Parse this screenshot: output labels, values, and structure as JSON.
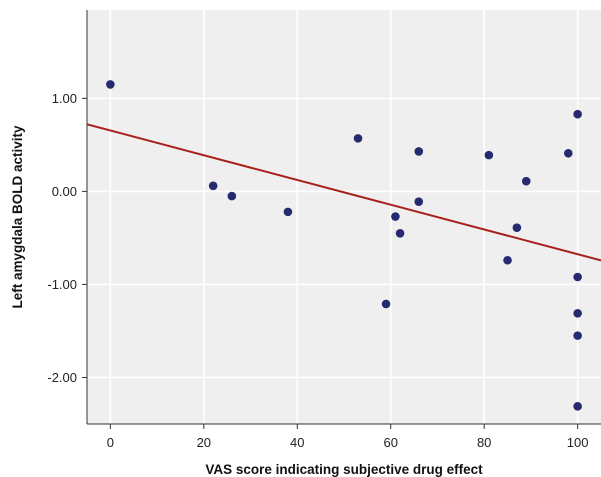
{
  "chart_data": {
    "type": "scatter",
    "xlabel": "VAS score indicating subjective drug effect",
    "ylabel": "Left amygdala BOLD activity",
    "xlim": [
      -5,
      105
    ],
    "ylim": [
      -2.5,
      1.95
    ],
    "x_ticks": [
      0,
      20,
      40,
      60,
      80,
      100
    ],
    "y_ticks": [
      1.0,
      0.0,
      -1.0,
      -2.0
    ],
    "x_tick_labels": [
      "0",
      "20",
      "40",
      "60",
      "80",
      "100"
    ],
    "y_tick_labels": [
      "1.00",
      "0.00",
      "-1.00",
      "-2.00"
    ],
    "grid": true,
    "background_color": "#efefef",
    "grid_color": "#ffffff",
    "point_color": "#262a6e",
    "line_color": "#a8201a",
    "points": [
      {
        "x": 0,
        "y": 1.15
      },
      {
        "x": 22,
        "y": 0.06
      },
      {
        "x": 26,
        "y": -0.05
      },
      {
        "x": 38,
        "y": -0.22
      },
      {
        "x": 53,
        "y": 0.57
      },
      {
        "x": 59,
        "y": -1.21
      },
      {
        "x": 61,
        "y": -0.27
      },
      {
        "x": 62,
        "y": -0.45
      },
      {
        "x": 66,
        "y": 0.43
      },
      {
        "x": 66,
        "y": -0.11
      },
      {
        "x": 81,
        "y": 0.39
      },
      {
        "x": 85,
        "y": -0.74
      },
      {
        "x": 87,
        "y": -0.39
      },
      {
        "x": 89,
        "y": 0.11
      },
      {
        "x": 98,
        "y": 0.41
      },
      {
        "x": 100,
        "y": 0.83
      },
      {
        "x": 100,
        "y": -0.92
      },
      {
        "x": 100,
        "y": -1.31
      },
      {
        "x": 100,
        "y": -1.55
      },
      {
        "x": 100,
        "y": -2.31
      }
    ],
    "fit_line": {
      "intercept": 0.655,
      "slope": -0.0133
    }
  }
}
